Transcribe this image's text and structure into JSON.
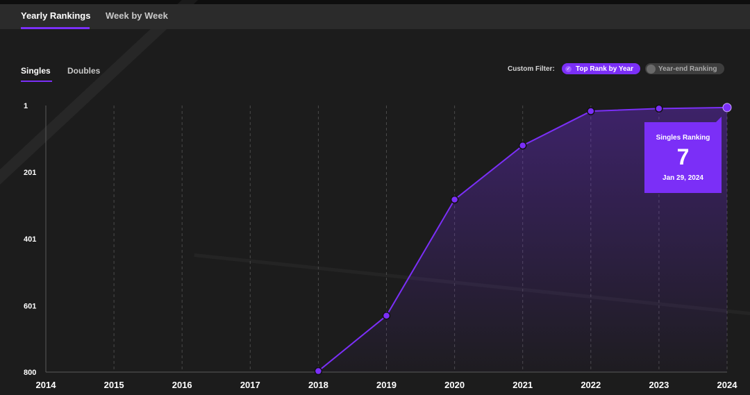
{
  "tabs": [
    {
      "label": "Yearly Rankings",
      "active": true
    },
    {
      "label": "Week by Week",
      "active": false
    }
  ],
  "subtabs": [
    {
      "label": "Singles",
      "active": true
    },
    {
      "label": "Doubles",
      "active": false
    }
  ],
  "filter": {
    "label": "Custom Filter:",
    "options": [
      {
        "label": "Top Rank by Year",
        "selected": true
      },
      {
        "label": "Year-end Ranking",
        "selected": false
      }
    ]
  },
  "tooltip": {
    "label": "Singles Ranking",
    "value": "7",
    "date": "Jan 29, 2024"
  },
  "colors": {
    "accent": "#7b2ff7",
    "background": "#1c1c1c",
    "tabbar": "#2b2b2b"
  },
  "chart_data": {
    "type": "line",
    "title": "",
    "xlabel": "",
    "ylabel": "",
    "x_ticks": [
      "2014",
      "2015",
      "2016",
      "2017",
      "2018",
      "2019",
      "2020",
      "2021",
      "2022",
      "2023",
      "2024"
    ],
    "y_ticks": [
      "1",
      "201",
      "401",
      "601",
      "800"
    ],
    "xlim": [
      2014,
      2024
    ],
    "ylim": [
      1,
      800
    ],
    "y_inverted": true,
    "grid": "vertical dashed",
    "series": [
      {
        "name": "",
        "x": [
          2018,
          2019,
          2020,
          2021,
          2022,
          2023,
          2024
        ],
        "y": [
          797,
          631,
          283,
          121,
          18,
          10,
          7
        ]
      }
    ]
  }
}
